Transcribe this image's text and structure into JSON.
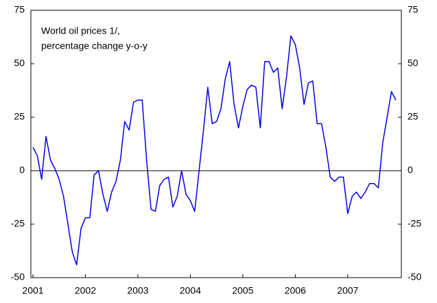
{
  "chart_data": {
    "type": "line",
    "annotation": [
      "World oil prices 1/,",
      "percentage change y-o-y"
    ],
    "categories": [
      "2001",
      null,
      null,
      null,
      null,
      null,
      null,
      null,
      null,
      null,
      null,
      null,
      "2002",
      null,
      null,
      null,
      null,
      null,
      null,
      null,
      null,
      null,
      null,
      null,
      "2003",
      null,
      null,
      null,
      null,
      null,
      null,
      null,
      null,
      null,
      null,
      null,
      "2004",
      null,
      null,
      null,
      null,
      null,
      null,
      null,
      null,
      null,
      null,
      null,
      "2005",
      null,
      null,
      null,
      null,
      null,
      null,
      null,
      null,
      null,
      null,
      null,
      "2006",
      null,
      null,
      null,
      null,
      null,
      null,
      null,
      null,
      null,
      null,
      null,
      "2007",
      null,
      null,
      null,
      null,
      null,
      null,
      null,
      null,
      null,
      null,
      null
    ],
    "series": [
      {
        "color": "#0000e6",
        "values": [
          11,
          7,
          -4,
          16,
          5,
          1,
          -4,
          -12,
          -25,
          -38,
          -44,
          -27,
          -22,
          -22,
          -2,
          0,
          -11,
          -19,
          -10,
          -5,
          5,
          23,
          19,
          32,
          33,
          33,
          5,
          -18,
          -19,
          -7,
          -4,
          -3,
          -17,
          -12,
          0,
          -11,
          -14,
          -19,
          0,
          19,
          39,
          22,
          23,
          29,
          43,
          51,
          31,
          20,
          30,
          38,
          40,
          39,
          20,
          51,
          51,
          46,
          48,
          29,
          44,
          63,
          59,
          48,
          31,
          41,
          42,
          22,
          22,
          11,
          -3,
          -5,
          -3,
          -3,
          -20,
          -12,
          -10,
          -13,
          -10,
          -6,
          -6,
          -8,
          13,
          25,
          37,
          33
        ]
      }
    ],
    "ylim": [
      -50,
      75
    ],
    "yticks": [
      -50,
      -25,
      0,
      25,
      50,
      75
    ],
    "y2lim": [
      -50,
      75
    ],
    "y2ticks": [
      -50,
      -25,
      0,
      25,
      50,
      75
    ],
    "zero_line": true
  }
}
